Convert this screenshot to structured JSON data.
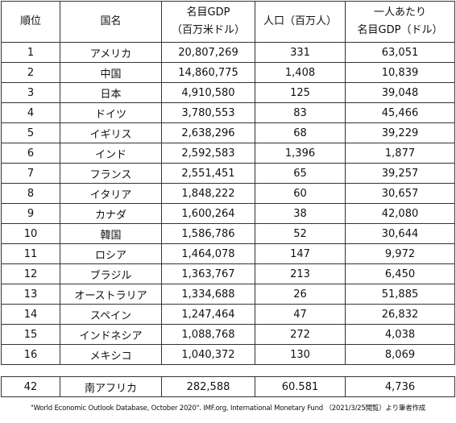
{
  "table": {
    "header": [
      [
        "順位"
      ],
      [
        "国名"
      ],
      [
        "名目GDP",
        "（百万米ドル）"
      ],
      [
        "人口（百万人）"
      ],
      [
        "一人あたり",
        "名目GDP（ドル）"
      ]
    ],
    "rows": [
      [
        "1",
        "アメリカ",
        "20,807,269",
        "331",
        "63,051"
      ],
      [
        "2",
        "中国",
        "14,860,775",
        "1,408",
        "10,839"
      ],
      [
        "3",
        "日本",
        "4,910,580",
        "125",
        "39,048"
      ],
      [
        "4",
        "ドイツ",
        "3,780,553",
        "83",
        "45,466"
      ],
      [
        "5",
        "イギリス",
        "2,638,296",
        "68",
        "39,229"
      ],
      [
        "6",
        "インド",
        "2,592,583",
        "1,396",
        "1,877"
      ],
      [
        "7",
        "フランス",
        "2,551,451",
        "65",
        "39,257"
      ],
      [
        "8",
        "イタリア",
        "1,848,222",
        "60",
        "30,657"
      ],
      [
        "9",
        "カナダ",
        "1,600,264",
        "38",
        "42,080"
      ],
      [
        "10",
        "韓国",
        "1,586,786",
        "52",
        "30,644"
      ],
      [
        "11",
        "ロシア",
        "1,464,078",
        "147",
        "9,972"
      ],
      [
        "12",
        "ブラジル",
        "1,363,767",
        "213",
        "6,450"
      ],
      [
        "13",
        "オーストラリア",
        "1,334,688",
        "26",
        "51,885"
      ],
      [
        "14",
        "スペイン",
        "1,247,464",
        "47",
        "26,832"
      ],
      [
        "15",
        "インドネシア",
        "1,088,768",
        "272",
        "4,038"
      ],
      [
        "16",
        "メキシコ",
        "1,040,372",
        "130",
        "8,069"
      ]
    ]
  },
  "extra_rows": [
    [
      "42",
      "南アフリカ",
      "282,588",
      "60.581",
      "4,736"
    ]
  ],
  "footnote": "\"World Economic Outlook Database, October 2020\". IMF.org, International Monetary Fund （2021/3/25閲覧）より筆者作成"
}
